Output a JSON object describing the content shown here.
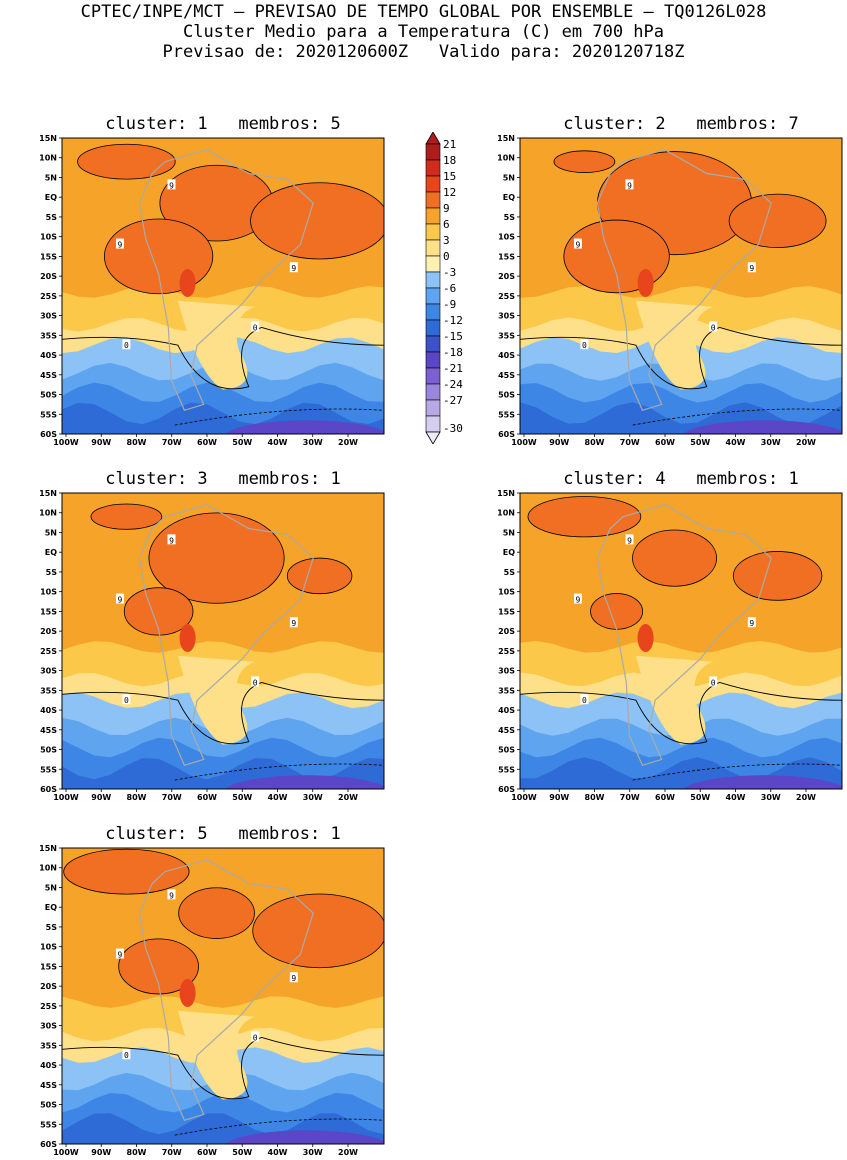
{
  "header": {
    "line1": "CPTEC/INPE/MCT – PREVISAO DE TEMPO GLOBAL POR ENSEMBLE – TQ0126L028",
    "line2": "Cluster Medio para a Temperatura (C) em 700 hPa",
    "line3": "Previsao de: 2020120600Z   Valido para: 2020120718Z"
  },
  "panels": [
    {
      "id": 1,
      "title": "cluster: 1   membros: 5"
    },
    {
      "id": 2,
      "title": "cluster: 2   membros: 7"
    },
    {
      "id": 3,
      "title": "cluster: 3   membros: 1"
    },
    {
      "id": 4,
      "title": "cluster: 4   membros: 1"
    },
    {
      "id": 5,
      "title": "cluster: 5   membros: 1"
    }
  ],
  "axes": {
    "lat_labels": [
      "15N",
      "10N",
      "5N",
      "EQ",
      "5S",
      "10S",
      "15S",
      "20S",
      "25S",
      "30S",
      "35S",
      "40S",
      "45S",
      "50S",
      "55S",
      "60S"
    ],
    "lon_labels": [
      "100W",
      "90W",
      "80W",
      "70W",
      "60W",
      "50W",
      "40W",
      "30W",
      "20W"
    ]
  },
  "colorbar": {
    "labels": [
      "21",
      "18",
      "15",
      "12",
      "9",
      "6",
      "3",
      "0",
      "-3",
      "-6",
      "-9",
      "-12",
      "-15",
      "-18",
      "-21",
      "-24",
      "-27",
      "-30"
    ],
    "colors": [
      "#b01c1c",
      "#d32a1e",
      "#e8451c",
      "#f06f22",
      "#f6a32a",
      "#fbc84a",
      "#fde089",
      "#fdf0b0",
      "#8cc2f5",
      "#5ea4ef",
      "#3d86e6",
      "#2f6bd6",
      "#3b52c8",
      "#5a46c6",
      "#7c5fd2",
      "#9a86dc",
      "#b8a8e6",
      "#d6cef0"
    ]
  },
  "contour_labels": {
    "warm": "9",
    "zero": "0"
  },
  "colors": {
    "map_warm_dark": "#e8451c",
    "map_warm": "#f06f22",
    "map_orange": "#f6a32a",
    "map_light_orange": "#fbc84a",
    "map_yellow": "#fde089",
    "map_light_blue": "#8cc2f5",
    "map_blue": "#5ea4ef",
    "map_mid_blue": "#3d86e6",
    "map_dark_blue": "#2f6bd6",
    "map_purple": "#5a46c6",
    "coastline": "#aaaaaa"
  }
}
